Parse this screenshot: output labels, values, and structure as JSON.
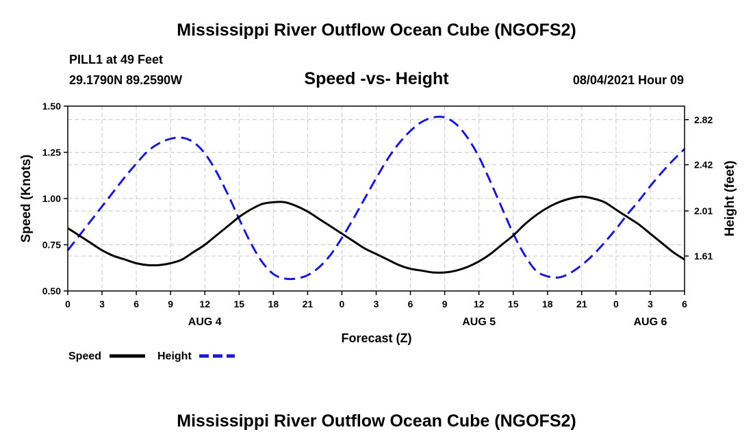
{
  "header": {
    "title": "Mississippi River Outflow Ocean Cube (NGOFS2)",
    "station": "PILL1 at 49 Feet",
    "coords": "29.1790N  89.2590W",
    "subtitle": "Speed -vs- Height",
    "datetime": "08/04/2021 Hour 09"
  },
  "footer": {
    "title": "Mississippi River Outflow Ocean Cube (NGOFS2)"
  },
  "colors": {
    "speed": "#000000",
    "height": "#1a1acc",
    "grid": "#c8c8c8"
  },
  "chart_data": {
    "type": "line",
    "title": "Speed -vs- Height",
    "xlabel": "Forecast (Z)",
    "ylabel": "Speed (Knots)",
    "y2label": "Height (feet)",
    "xlim": [
      0,
      54
    ],
    "ylim": [
      0.5,
      1.5
    ],
    "y2lim": [
      1.3,
      2.94
    ],
    "x_tick_labels": [
      "0",
      "3",
      "6",
      "9",
      "12",
      "15",
      "18",
      "21",
      "0",
      "3",
      "6",
      "9",
      "12",
      "15",
      "18",
      "21",
      "0",
      "3",
      "6"
    ],
    "y_ticks": [
      "0.50",
      "0.75",
      "1.00",
      "1.25",
      "1.50"
    ],
    "y_tick_values": [
      0.5,
      0.75,
      1.0,
      1.25,
      1.5
    ],
    "y2_ticks": [
      "1.61",
      "2.01",
      "2.42",
      "2.82"
    ],
    "y2_tick_values": [
      1.61,
      2.01,
      2.42,
      2.82
    ],
    "date_labels": [
      {
        "label": "AUG 4",
        "hour": 12
      },
      {
        "label": "AUG 5",
        "hour": 36
      },
      {
        "label": "AUG 6",
        "hour": 51
      }
    ],
    "series": [
      {
        "name": "Speed",
        "axis": "left",
        "style": "solid",
        "x": [
          0,
          1,
          2,
          3,
          4,
          5,
          6,
          7,
          8,
          9,
          10,
          11,
          12,
          13,
          14,
          15,
          16,
          17,
          18,
          19,
          20,
          21,
          22,
          23,
          24,
          25,
          26,
          27,
          28,
          29,
          30,
          31,
          32,
          33,
          34,
          35,
          36,
          37,
          38,
          39,
          40,
          41,
          42,
          43,
          44,
          45,
          46,
          47,
          48,
          49,
          50,
          51,
          52,
          53,
          54
        ],
        "values": [
          0.84,
          0.8,
          0.76,
          0.72,
          0.69,
          0.67,
          0.65,
          0.64,
          0.64,
          0.65,
          0.67,
          0.71,
          0.75,
          0.8,
          0.85,
          0.9,
          0.94,
          0.97,
          0.98,
          0.98,
          0.96,
          0.93,
          0.89,
          0.85,
          0.81,
          0.77,
          0.73,
          0.7,
          0.67,
          0.64,
          0.62,
          0.61,
          0.6,
          0.6,
          0.61,
          0.63,
          0.66,
          0.7,
          0.75,
          0.8,
          0.86,
          0.91,
          0.95,
          0.98,
          1.0,
          1.01,
          1.0,
          0.98,
          0.94,
          0.9,
          0.86,
          0.81,
          0.76,
          0.71,
          0.67
        ]
      },
      {
        "name": "Height",
        "axis": "right",
        "style": "dashed",
        "x": [
          0,
          1,
          2,
          3,
          4,
          5,
          6,
          7,
          8,
          9,
          10,
          11,
          12,
          13,
          14,
          15,
          16,
          17,
          18,
          19,
          20,
          21,
          22,
          23,
          24,
          25,
          26,
          27,
          28,
          29,
          30,
          31,
          32,
          33,
          34,
          35,
          36,
          37,
          38,
          39,
          40,
          41,
          42,
          43,
          44,
          45,
          46,
          47,
          48,
          49,
          50,
          51,
          52,
          53,
          54
        ],
        "values": [
          1.66,
          1.79,
          1.92,
          2.05,
          2.18,
          2.31,
          2.43,
          2.54,
          2.61,
          2.65,
          2.66,
          2.62,
          2.52,
          2.36,
          2.16,
          1.94,
          1.73,
          1.56,
          1.45,
          1.41,
          1.41,
          1.44,
          1.51,
          1.62,
          1.77,
          1.94,
          2.12,
          2.3,
          2.47,
          2.61,
          2.72,
          2.8,
          2.84,
          2.84,
          2.78,
          2.66,
          2.49,
          2.27,
          2.04,
          1.81,
          1.62,
          1.48,
          1.43,
          1.42,
          1.46,
          1.53,
          1.62,
          1.73,
          1.85,
          1.98,
          2.1,
          2.23,
          2.35,
          2.46,
          2.56
        ]
      }
    ]
  },
  "legend": {
    "speed_label": "Speed",
    "height_label": "Height"
  }
}
